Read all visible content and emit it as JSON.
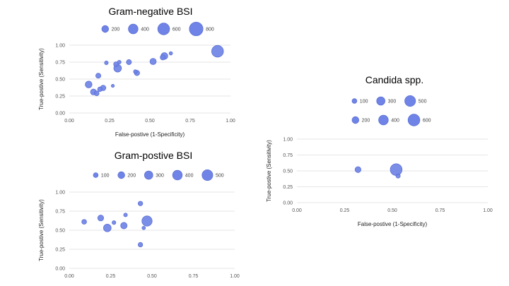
{
  "bubble_color": "#6f84e6",
  "chart_data": [
    {
      "type": "scatter",
      "title": "Gram-negative BSI",
      "xlabel": "False-postive (1-Specificity)",
      "ylabel": "True-postive (Sensitivity)",
      "xlim": [
        0,
        1
      ],
      "ylim": [
        0,
        1
      ],
      "x_ticks": [
        "0.00",
        "0.25",
        "0.50",
        "0.75",
        "1.00"
      ],
      "y_ticks": [
        "0.00",
        "0.25",
        "0.50",
        "0.75",
        "1.00"
      ],
      "grid": true,
      "legend": [
        {
          "label": "200",
          "size": 200
        },
        {
          "label": "400",
          "size": 400
        },
        {
          "label": "600",
          "size": 600
        },
        {
          "label": "800",
          "size": 800
        }
      ],
      "points": [
        {
          "x": 0.12,
          "y": 0.42,
          "size": 200
        },
        {
          "x": 0.15,
          "y": 0.31,
          "size": 150
        },
        {
          "x": 0.17,
          "y": 0.29,
          "size": 100
        },
        {
          "x": 0.18,
          "y": 0.55,
          "size": 110
        },
        {
          "x": 0.19,
          "y": 0.35,
          "size": 90
        },
        {
          "x": 0.21,
          "y": 0.37,
          "size": 130
        },
        {
          "x": 0.23,
          "y": 0.74,
          "size": 60
        },
        {
          "x": 0.27,
          "y": 0.4,
          "size": 40
        },
        {
          "x": 0.29,
          "y": 0.72,
          "size": 100
        },
        {
          "x": 0.3,
          "y": 0.66,
          "size": 250
        },
        {
          "x": 0.31,
          "y": 0.75,
          "size": 60
        },
        {
          "x": 0.37,
          "y": 0.75,
          "size": 110
        },
        {
          "x": 0.41,
          "y": 0.61,
          "size": 60
        },
        {
          "x": 0.42,
          "y": 0.59,
          "size": 120
        },
        {
          "x": 0.52,
          "y": 0.76,
          "size": 170
        },
        {
          "x": 0.58,
          "y": 0.82,
          "size": 110
        },
        {
          "x": 0.59,
          "y": 0.84,
          "size": 200
        },
        {
          "x": 0.63,
          "y": 0.88,
          "size": 50
        },
        {
          "x": 0.92,
          "y": 0.91,
          "size": 600
        }
      ]
    },
    {
      "type": "scatter",
      "title": "Gram-postive BSI",
      "xlabel": "False-postive (1-Specificity)",
      "ylabel": "True-postive (Sensitivity)",
      "xlim": [
        0,
        1
      ],
      "ylim": [
        0,
        1
      ],
      "x_ticks": [
        "0.00",
        "0.25",
        "0.50",
        "0.75",
        "1.00"
      ],
      "y_ticks": [
        "0.00",
        "0.25",
        "0.50",
        "0.75",
        "1.00"
      ],
      "grid": true,
      "legend": [
        {
          "label": "100",
          "size": 100
        },
        {
          "label": "200",
          "size": 200
        },
        {
          "label": "300",
          "size": 300
        },
        {
          "label": "400",
          "size": 400
        },
        {
          "label": "500",
          "size": 500
        }
      ],
      "points": [
        {
          "x": 0.09,
          "y": 0.61,
          "size": 100
        },
        {
          "x": 0.19,
          "y": 0.66,
          "size": 150
        },
        {
          "x": 0.23,
          "y": 0.53,
          "size": 250
        },
        {
          "x": 0.27,
          "y": 0.6,
          "size": 60
        },
        {
          "x": 0.33,
          "y": 0.56,
          "size": 180
        },
        {
          "x": 0.34,
          "y": 0.7,
          "size": 60
        },
        {
          "x": 0.43,
          "y": 0.85,
          "size": 90
        },
        {
          "x": 0.43,
          "y": 0.31,
          "size": 90
        },
        {
          "x": 0.45,
          "y": 0.53,
          "size": 50
        },
        {
          "x": 0.47,
          "y": 0.62,
          "size": 450
        }
      ]
    },
    {
      "type": "scatter",
      "title": "Candida spp.",
      "xlabel": "False-postive (1-Specificity)",
      "ylabel": "True-postive (Sensitivity)",
      "xlim": [
        0,
        1
      ],
      "ylim": [
        0,
        1
      ],
      "x_ticks": [
        "0.00",
        "0.25",
        "0.50",
        "0.75",
        "1.00"
      ],
      "y_ticks": [
        "0.00",
        "0.25",
        "0.50",
        "0.75",
        "1.00"
      ],
      "grid": true,
      "legend": [
        {
          "label": "100",
          "size": 100
        },
        {
          "label": "300",
          "size": 300
        },
        {
          "label": "500",
          "size": 500
        },
        {
          "label": "200",
          "size": 200
        },
        {
          "label": "400",
          "size": 400
        },
        {
          "label": "600",
          "size": 600
        }
      ],
      "points": [
        {
          "x": 0.32,
          "y": 0.52,
          "size": 150
        },
        {
          "x": 0.53,
          "y": 0.42,
          "size": 80
        },
        {
          "x": 0.52,
          "y": 0.52,
          "size": 600
        }
      ]
    }
  ]
}
